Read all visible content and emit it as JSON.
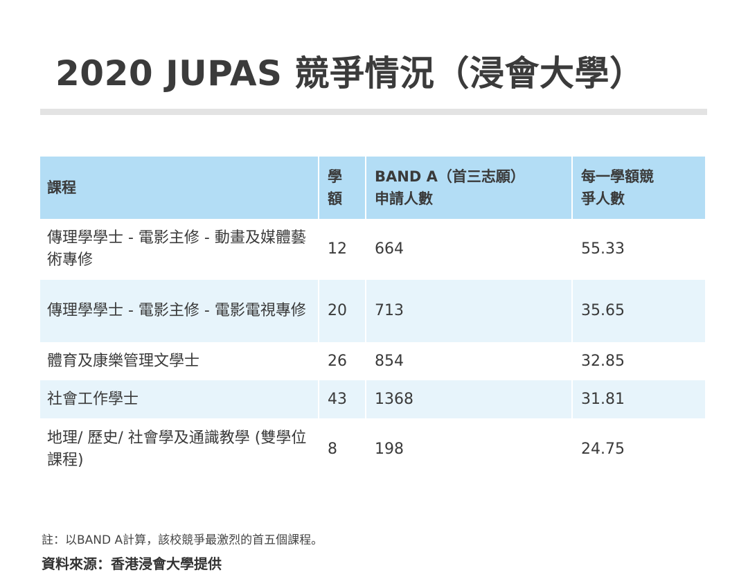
{
  "title": "2020 JUPAS 競爭情況（浸會大學）",
  "table": {
    "headers": {
      "programme": "課程",
      "places_line1": "學",
      "places_line2": "額",
      "applicants_line1": "BAND A（首三志願）",
      "applicants_line2": "申請人數",
      "ratio_line1": "每一學額競",
      "ratio_line2": "爭人數"
    },
    "rows": [
      {
        "programme": "傳理學學士 - 電影主修 - 動畫及媒體藝術專修",
        "places": "12",
        "applicants": "664",
        "ratio": "55.33"
      },
      {
        "programme": "傳理學學士 - 電影主修 - 電影電視專修",
        "places": "20",
        "applicants": "713",
        "ratio": "35.65"
      },
      {
        "programme": "體育及康樂管理文學士",
        "places": "26",
        "applicants": "854",
        "ratio": "32.85"
      },
      {
        "programme": "社會工作學士",
        "places": "43",
        "applicants": "1368",
        "ratio": "31.81"
      },
      {
        "programme": "地理/ 歷史/ 社會學及通識教學 (雙學位課程)",
        "places": "8",
        "applicants": "198",
        "ratio": "24.75"
      }
    ]
  },
  "note": "註：以BAND A計算，該校競爭最激烈的首五個課程。",
  "source": "資料來源：香港浸會大學提供",
  "colors": {
    "header_bg": "#b3ddf5",
    "stripe_bg": "#e7f4fb",
    "rule": "#e3e3e3"
  }
}
